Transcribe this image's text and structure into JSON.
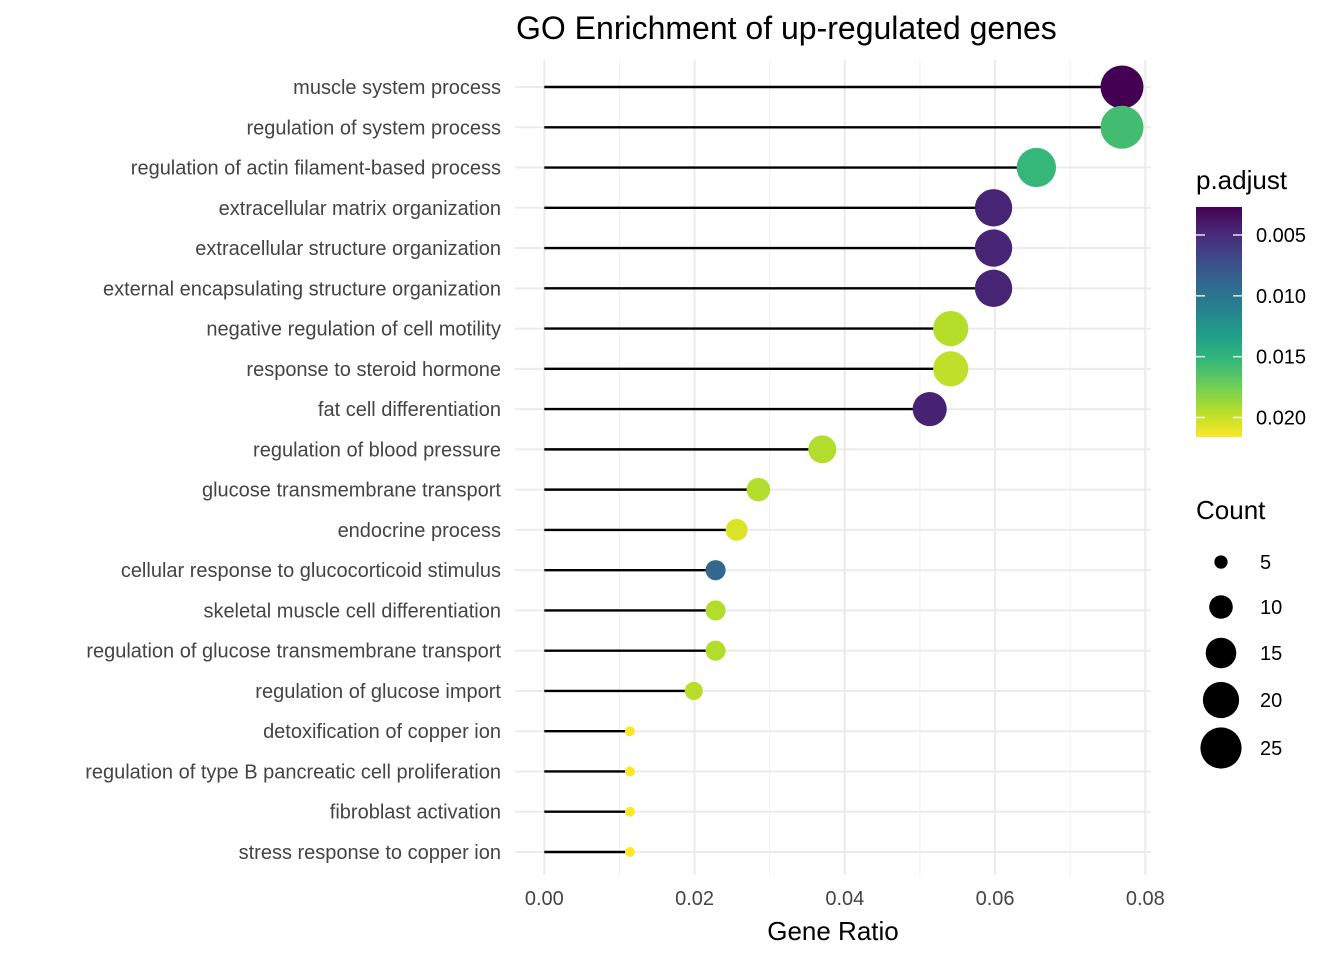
{
  "chart_data": {
    "type": "scatter",
    "subtype": "lollipop",
    "title": "GO Enrichment of up-regulated genes",
    "xlabel": "Gene Ratio",
    "ylabel": "",
    "xlim": [
      0,
      0.08
    ],
    "x_ticks": [
      0.0,
      0.02,
      0.04,
      0.06,
      0.08
    ],
    "x_tick_labels": [
      "0.00",
      "0.02",
      "0.04",
      "0.06",
      "0.08"
    ],
    "grid": true,
    "categories": [
      "muscle system process",
      "regulation of system process",
      "regulation of actin filament-based process",
      "extracellular matrix organization",
      "extracellular structure organization",
      "external encapsulating structure organization",
      "negative regulation of cell motility",
      "response to steroid hormone",
      "fat cell differentiation",
      "regulation of blood pressure",
      "glucose transmembrane transport",
      "endocrine process",
      "cellular response to glucocorticoid stimulus",
      "skeletal muscle cell differentiation",
      "regulation of glucose transmembrane transport",
      "regulation of glucose import",
      "detoxification of copper ion",
      "regulation of type B pancreatic cell proliferation",
      "fibroblast activation",
      "stress response to copper ion"
    ],
    "gene_ratio": [
      0.0769,
      0.0769,
      0.0655,
      0.0598,
      0.0598,
      0.0598,
      0.0541,
      0.0541,
      0.0513,
      0.037,
      0.0285,
      0.0256,
      0.0228,
      0.0228,
      0.0228,
      0.0199,
      0.0114,
      0.0114,
      0.0114,
      0.0114
    ],
    "count": [
      27,
      27,
      23,
      21,
      21,
      21,
      19,
      19,
      18,
      13,
      10,
      9,
      8,
      8,
      8,
      7,
      4,
      4,
      4,
      4
    ],
    "p_adjust": [
      0.0027,
      0.0158,
      0.0153,
      0.0046,
      0.0046,
      0.0046,
      0.0195,
      0.0198,
      0.0045,
      0.0194,
      0.0194,
      0.0206,
      0.0089,
      0.0194,
      0.0194,
      0.0196,
      0.0216,
      0.0216,
      0.0216,
      0.0216
    ],
    "color_legend": {
      "title": "p.adjust",
      "range": [
        0.0027,
        0.0216
      ],
      "ticks": [
        0.005,
        0.01,
        0.015,
        0.02
      ],
      "tick_labels": [
        "0.005",
        "0.010",
        "0.015",
        "0.020"
      ],
      "colormap": "viridis (reversed: low = dark purple, high = yellow)",
      "colors": [
        "#440154",
        "#482878",
        "#3e4989",
        "#31688e",
        "#26828e",
        "#1f9e89",
        "#35b779",
        "#6ece58",
        "#b5de2b",
        "#fde725"
      ]
    },
    "size_legend": {
      "title": "Count",
      "values": [
        5,
        10,
        15,
        20,
        25
      ],
      "labels": [
        "5",
        "10",
        "15",
        "20",
        "25"
      ]
    },
    "legend_placement": "right"
  }
}
